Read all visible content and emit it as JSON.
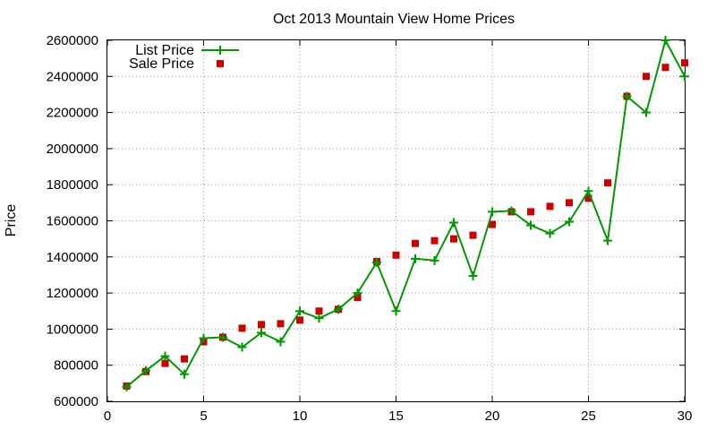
{
  "chart_data": {
    "type": "line",
    "title": "Oct 2013 Mountain View Home Prices",
    "xlabel": "",
    "ylabel": "Price",
    "xlim": [
      0,
      30
    ],
    "ylim": [
      600000,
      2600000
    ],
    "xticks": [
      0,
      5,
      10,
      15,
      20,
      25,
      30
    ],
    "yticks": [
      600000,
      800000,
      1000000,
      1200000,
      1400000,
      1600000,
      1800000,
      2000000,
      2200000,
      2400000,
      2600000
    ],
    "grid": true,
    "legend_position": "top-left",
    "series": [
      {
        "name": "List Price",
        "style": "line-with-plus-markers",
        "color": "#009900",
        "x": [
          1,
          2,
          3,
          4,
          5,
          6,
          7,
          8,
          9,
          10,
          11,
          12,
          13,
          14,
          15,
          16,
          17,
          18,
          19,
          20,
          21,
          22,
          23,
          24,
          25,
          26,
          27,
          28,
          29,
          30
        ],
        "values": [
          680000,
          770000,
          850000,
          750000,
          950000,
          955000,
          900000,
          980000,
          930000,
          1100000,
          1060000,
          1110000,
          1200000,
          1370000,
          1100000,
          1390000,
          1380000,
          1590000,
          1295000,
          1650000,
          1655000,
          1575000,
          1530000,
          1595000,
          1765000,
          1490000,
          2290000,
          2200000,
          2600000,
          2400000
        ]
      },
      {
        "name": "Sale Price",
        "style": "square-markers",
        "color": "#cc0000",
        "x": [
          1,
          2,
          3,
          4,
          5,
          6,
          7,
          8,
          9,
          10,
          11,
          12,
          13,
          14,
          15,
          16,
          17,
          18,
          19,
          20,
          21,
          22,
          23,
          24,
          25,
          26,
          27,
          28,
          29,
          30
        ],
        "values": [
          685000,
          765000,
          810000,
          835000,
          930000,
          955000,
          1005000,
          1025000,
          1030000,
          1050000,
          1100000,
          1110000,
          1175000,
          1375000,
          1410000,
          1475000,
          1490000,
          1500000,
          1520000,
          1580000,
          1650000,
          1650000,
          1680000,
          1700000,
          1725000,
          1810000,
          2290000,
          2400000,
          2450000,
          2475000
        ]
      }
    ]
  }
}
